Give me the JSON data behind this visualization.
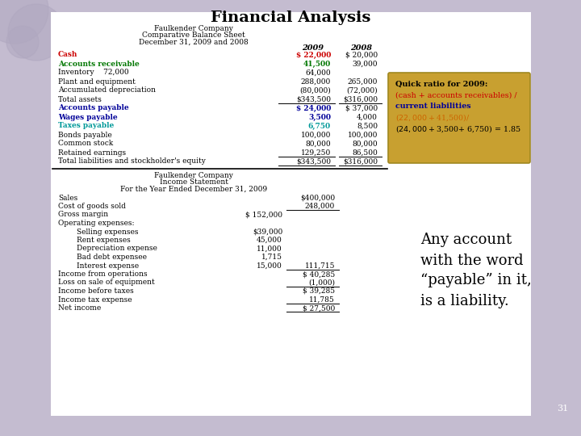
{
  "title": "Financial Analysis",
  "bg_color": "#c4bcd0",
  "title_color": "#000000",
  "title_fontsize": 14,
  "subtitle1": "Faulkender Company",
  "subtitle2": "Comparative Balance Sheet",
  "subtitle3": "December 31, 2009 and 2008",
  "balance_sheet_rows": [
    {
      "label": "Cash",
      "val2009": "$ 22,000",
      "val2008": "$ 20,000",
      "bold": true,
      "color2009": "#cc0000",
      "label_color": "#cc0000"
    },
    {
      "label": "Accounts receivable",
      "val2009": "41,500",
      "val2008": "39,000",
      "bold": true,
      "color2009": "#007700",
      "label_color": "#007700"
    },
    {
      "label": "Inventory    72,000",
      "val2009": "64,000",
      "val2008": "",
      "bold": false,
      "color2009": "#000000",
      "label_color": "#000000"
    },
    {
      "label": "Plant and equipment",
      "val2009": "288,000",
      "val2008": "265,000",
      "bold": false,
      "color2009": "#000000",
      "label_color": "#000000"
    },
    {
      "label": "Accumulated depreciation",
      "val2009": "(80,000)",
      "val2008": "(72,000)",
      "bold": false,
      "color2009": "#000000",
      "label_color": "#000000"
    },
    {
      "label": "Total assets",
      "val2009": "$343,500",
      "val2008": "$316,000",
      "bold": false,
      "color2009": "#000000",
      "label_color": "#000000",
      "underline": true
    },
    {
      "label": "Accounts payable",
      "val2009": "$ 24,000",
      "val2008": "$ 37,000",
      "bold": true,
      "color2009": "#000099",
      "label_color": "#000099"
    },
    {
      "label": "Wages payable",
      "val2009": "3,500",
      "val2008": "4,000",
      "bold": true,
      "color2009": "#000099",
      "label_color": "#000099"
    },
    {
      "label": "Taxes payable",
      "val2009": "6,750",
      "val2008": "8,500",
      "bold": true,
      "color2009": "#009999",
      "label_color": "#009999"
    },
    {
      "label": "Bonds payable",
      "val2009": "100,000",
      "val2008": "100,000",
      "bold": false,
      "color2009": "#000000",
      "label_color": "#000000"
    },
    {
      "label": "Common stock",
      "val2009": "80,000",
      "val2008": "80,000",
      "bold": false,
      "color2009": "#000000",
      "label_color": "#000000"
    },
    {
      "label": "Retained earnings",
      "val2009": "129,250",
      "val2008": "86,500",
      "bold": false,
      "color2009": "#000000",
      "label_color": "#000000",
      "underline": true
    },
    {
      "label": "Total liabilities and stockholder's equity",
      "val2009": "$343,500",
      "val2008": "$316,000",
      "bold": false,
      "color2009": "#000000",
      "label_color": "#000000",
      "underline": true
    }
  ],
  "income_stmt_header1": "Faulkender Company",
  "income_stmt_header2": "Income Statement",
  "income_stmt_header3": "For the Year Ended December 31, 2009",
  "income_rows": [
    {
      "label": "Sales",
      "col1": "",
      "col2": "$400,000",
      "underline_col2": false
    },
    {
      "label": "Cost of goods sold",
      "col1": "",
      "col2": "248,000",
      "underline_col2": true
    },
    {
      "label": "Gross margin",
      "col1": "$ 152,000",
      "col2": "",
      "underline_col2": false
    },
    {
      "label": "Operating expenses:",
      "col1": "",
      "col2": "",
      "underline_col2": false
    },
    {
      "label": "        Selling expenses",
      "col1": "$39,000",
      "col2": "",
      "underline_col2": false
    },
    {
      "label": "        Rent expenses",
      "col1": "45,000",
      "col2": "",
      "underline_col2": false
    },
    {
      "label": "        Depreciation expense",
      "col1": "11,000",
      "col2": "",
      "underline_col2": false
    },
    {
      "label": "        Bad debt expensee",
      "col1": "1,715",
      "col2": "",
      "underline_col2": false
    },
    {
      "label": "        Interest expense",
      "col1": "15,000",
      "col2": "111,715",
      "underline_col2": true
    },
    {
      "label": "Income from operations",
      "col1": "",
      "col2": "$ 40,285",
      "underline_col2": false
    },
    {
      "label": "Loss on sale of equipment",
      "col1": "",
      "col2": "(1,000)",
      "underline_col2": true
    },
    {
      "label": "Income before taxes",
      "col1": "",
      "col2": "$ 39,285",
      "underline_col2": false
    },
    {
      "label": "Income tax expense",
      "col1": "",
      "col2": "11,785",
      "underline_col2": true
    },
    {
      "label": "Net income",
      "col1": "",
      "col2": "$ 27,500",
      "underline_col2": true
    }
  ],
  "quickratio_box_color": "#c8a030",
  "quickratio_title": "Quick ratio for 2009:",
  "quickratio_line2": "(cash + accounts receivables) /",
  "quickratio_line3": "current liabilities",
  "quickratio_line4": "($22,000+ $41,500)/",
  "quickratio_line5": "($24,000+ $3,500+ 6,750) = 1.85",
  "payable_text": "Any account\nwith the word\n“payable” in it,\nis a liability.",
  "page_number": "31",
  "circles_color": "#b0a8c0",
  "sep_line_color": "#000000",
  "white_area": [
    63,
    25,
    595,
    500
  ]
}
